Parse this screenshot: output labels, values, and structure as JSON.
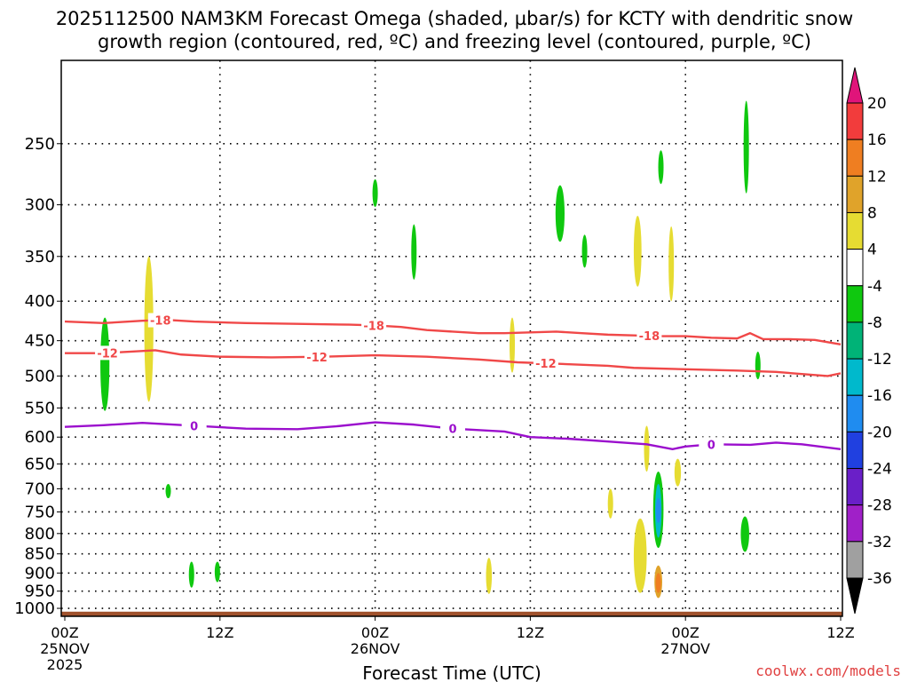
{
  "title": {
    "line1": "2025112500 NAM3KM Forecast Omega (shaded, µbar/s) for KCTY with dendritic snow",
    "line2": "growth region (contoured, red, ºC) and freezing level (contoured, purple, ºC)"
  },
  "watermark": "coolwx.com/models",
  "chart_data": {
    "type": "heatmap",
    "xlabel": "Forecast Time (UTC)",
    "x_ticks": [
      {
        "h": 0,
        "lines": [
          "00Z",
          "25NOV",
          "2025"
        ]
      },
      {
        "h": 12,
        "lines": [
          "12Z"
        ]
      },
      {
        "h": 24,
        "lines": [
          "00Z",
          "26NOV"
        ]
      },
      {
        "h": 36,
        "lines": [
          "12Z"
        ]
      },
      {
        "h": 48,
        "lines": [
          "00Z",
          "27NOV"
        ]
      },
      {
        "h": 60,
        "lines": [
          "12Z"
        ]
      }
    ],
    "xlim_hours": [
      0,
      60
    ],
    "ylabel": "",
    "y_ticks": [
      250,
      300,
      350,
      400,
      450,
      500,
      550,
      600,
      650,
      700,
      750,
      800,
      850,
      900,
      950,
      1000
    ],
    "ylim_hpa": [
      1024,
      195
    ],
    "y_scale": "log",
    "grid": "dotted",
    "colorbar": {
      "labels": [
        "20",
        "16",
        "12",
        "8",
        "4",
        "-4",
        "-8",
        "-12",
        "-16",
        "-20",
        "-24",
        "-28",
        "-32",
        "-36"
      ],
      "bins": [
        {
          "lo": 16,
          "hi": 20,
          "color": "#f23c3c"
        },
        {
          "lo": 12,
          "hi": 16,
          "color": "#ef7e21"
        },
        {
          "lo": 8,
          "hi": 12,
          "color": "#e0a32a"
        },
        {
          "lo": 4,
          "hi": 8,
          "color": "#e6dc32"
        },
        {
          "lo": -4,
          "hi": 4,
          "color": "#ffffff"
        },
        {
          "lo": -8,
          "hi": -4,
          "color": "#0fc80f"
        },
        {
          "lo": -12,
          "hi": -8,
          "color": "#00b377"
        },
        {
          "lo": -16,
          "hi": -12,
          "color": "#00b9cc"
        },
        {
          "lo": -20,
          "hi": -16,
          "color": "#1f8cf0"
        },
        {
          "lo": -24,
          "hi": -20,
          "color": "#2040e0"
        },
        {
          "lo": -28,
          "hi": -24,
          "color": "#6a1fc8"
        },
        {
          "lo": -32,
          "hi": -28,
          "color": "#a020c8"
        },
        {
          "lo": -36,
          "hi": -32,
          "color": "#a0a0a0"
        }
      ],
      "top_arrow_color": "#e0147a",
      "bottom_arrow_color": "#000000"
    },
    "terrain": {
      "color": "#a0522d",
      "top_hpa": 1010
    },
    "omega_features": [
      {
        "h": 3.1,
        "p": 488,
        "dh": 0.7,
        "dp_lo": 420,
        "dp_hi": 555,
        "color": "#0fc80f"
      },
      {
        "h": 6.5,
        "p": 440,
        "dh": 0.7,
        "dp_lo": 350,
        "dp_hi": 540,
        "color": "#e6dc32"
      },
      {
        "h": 8.0,
        "p": 705,
        "dh": 0.35,
        "dp_lo": 690,
        "dp_hi": 720,
        "color": "#0fc80f"
      },
      {
        "h": 9.8,
        "p": 905,
        "dh": 0.4,
        "dp_lo": 870,
        "dp_hi": 940,
        "color": "#0fc80f"
      },
      {
        "h": 11.8,
        "p": 895,
        "dh": 0.2,
        "dp_lo": 870,
        "dp_hi": 925,
        "color": "#0fc80f"
      },
      {
        "h": 24.0,
        "p": 290,
        "dh": 0.3,
        "dp_lo": 278,
        "dp_hi": 302,
        "color": "#0fc80f"
      },
      {
        "h": 27.0,
        "p": 345,
        "dh": 0.4,
        "dp_lo": 318,
        "dp_hi": 375,
        "color": "#0fc80f"
      },
      {
        "h": 32.8,
        "p": 905,
        "dh": 0.45,
        "dp_lo": 860,
        "dp_hi": 958,
        "color": "#e6dc32"
      },
      {
        "h": 34.6,
        "p": 455,
        "dh": 0.4,
        "dp_lo": 420,
        "dp_hi": 495,
        "color": "#e6dc32"
      },
      {
        "h": 38.3,
        "p": 313,
        "dh": 0.7,
        "dp_lo": 283,
        "dp_hi": 335,
        "color": "#0fc80f"
      },
      {
        "h": 40.2,
        "p": 345,
        "dh": 0.3,
        "dp_lo": 328,
        "dp_hi": 362,
        "color": "#0fc80f"
      },
      {
        "h": 42.2,
        "p": 730,
        "dh": 0.3,
        "dp_lo": 700,
        "dp_hi": 765,
        "color": "#e6dc32"
      },
      {
        "h": 44.3,
        "p": 345,
        "dh": 0.6,
        "dp_lo": 310,
        "dp_hi": 383,
        "color": "#e6dc32"
      },
      {
        "h": 45.0,
        "p": 620,
        "dh": 0.35,
        "dp_lo": 580,
        "dp_hi": 665,
        "color": "#e6dc32"
      },
      {
        "h": 44.5,
        "p": 860,
        "dh": 1.0,
        "dp_lo": 765,
        "dp_hi": 955,
        "color": "#e6dc32"
      },
      {
        "h": 45.9,
        "p": 920,
        "dh": 0.6,
        "dp_lo": 880,
        "dp_hi": 970,
        "color": "#e0a32a"
      },
      {
        "h": 45.9,
        "p": 925,
        "dh": 0.3,
        "dp_lo": 900,
        "dp_hi": 955,
        "color": "#ef7e21"
      },
      {
        "h": 45.9,
        "p": 745,
        "dh": 0.8,
        "dp_lo": 665,
        "dp_hi": 835,
        "color": "#0fc80f"
      },
      {
        "h": 45.9,
        "p": 745,
        "dh": 0.5,
        "dp_lo": 690,
        "dp_hi": 810,
        "color": "#00b9cc"
      },
      {
        "h": 45.9,
        "p": 745,
        "dh": 0.25,
        "dp_lo": 720,
        "dp_hi": 775,
        "color": "#1f8cf0"
      },
      {
        "h": 46.1,
        "p": 268,
        "dh": 0.2,
        "dp_lo": 255,
        "dp_hi": 282,
        "color": "#0fc80f"
      },
      {
        "h": 46.9,
        "p": 350,
        "dh": 0.25,
        "dp_lo": 320,
        "dp_hi": 400,
        "color": "#e6dc32"
      },
      {
        "h": 47.4,
        "p": 665,
        "dh": 0.5,
        "dp_lo": 640,
        "dp_hi": 695,
        "color": "#e6dc32"
      },
      {
        "h": 52.7,
        "p": 252,
        "dh": 0.4,
        "dp_lo": 220,
        "dp_hi": 290,
        "color": "#0fc80f"
      },
      {
        "h": 52.6,
        "p": 800,
        "dh": 0.65,
        "dp_lo": 760,
        "dp_hi": 845,
        "color": "#0fc80f"
      },
      {
        "h": 53.6,
        "p": 483,
        "dh": 0.2,
        "dp_lo": 465,
        "dp_hi": 505,
        "color": "#0fc80f"
      }
    ],
    "contours": [
      {
        "name": "-18",
        "label": "-18",
        "color": "#f04848",
        "points": [
          [
            0,
            425
          ],
          [
            3,
            427
          ],
          [
            6,
            424
          ],
          [
            8,
            423
          ],
          [
            10,
            425
          ],
          [
            14,
            427
          ],
          [
            18,
            428
          ],
          [
            22,
            429
          ],
          [
            24,
            430
          ],
          [
            26,
            432
          ],
          [
            28,
            436
          ],
          [
            30,
            438
          ],
          [
            32,
            440
          ],
          [
            34,
            440
          ],
          [
            36,
            439
          ],
          [
            38,
            438
          ],
          [
            40,
            440
          ],
          [
            42,
            442
          ],
          [
            44,
            443
          ],
          [
            46,
            444
          ],
          [
            48,
            444
          ],
          [
            50,
            446
          ],
          [
            52,
            447
          ],
          [
            53,
            440
          ],
          [
            54,
            448
          ],
          [
            56,
            448
          ],
          [
            58,
            449
          ],
          [
            60,
            455
          ]
        ],
        "label_at": [
          7.4,
          23.9,
          45.2
        ]
      },
      {
        "name": "-12",
        "label": "-12",
        "color": "#f04848",
        "points": [
          [
            0,
            467
          ],
          [
            3,
            467
          ],
          [
            5,
            465
          ],
          [
            7,
            463
          ],
          [
            9,
            469
          ],
          [
            12,
            472
          ],
          [
            16,
            473
          ],
          [
            20,
            472
          ],
          [
            24,
            470
          ],
          [
            28,
            472
          ],
          [
            32,
            476
          ],
          [
            35,
            480
          ],
          [
            38,
            482
          ],
          [
            42,
            485
          ],
          [
            44,
            488
          ],
          [
            48,
            490
          ],
          [
            52,
            492
          ],
          [
            55,
            494
          ],
          [
            59,
            500
          ],
          [
            60,
            496
          ]
        ],
        "label_at": [
          3.3,
          19.5,
          37.2
        ]
      },
      {
        "name": "0",
        "label": "0",
        "color": "#9b0fcd",
        "points": [
          [
            0,
            582
          ],
          [
            3,
            579
          ],
          [
            6,
            575
          ],
          [
            10,
            580
          ],
          [
            14,
            585
          ],
          [
            18,
            586
          ],
          [
            21,
            581
          ],
          [
            24,
            574
          ],
          [
            27,
            578
          ],
          [
            30,
            585
          ],
          [
            34,
            590
          ],
          [
            36,
            600
          ],
          [
            39,
            603
          ],
          [
            42,
            608
          ],
          [
            45,
            613
          ],
          [
            47,
            622
          ],
          [
            48,
            617
          ],
          [
            50,
            613
          ],
          [
            53,
            614
          ],
          [
            55,
            610
          ],
          [
            57,
            613
          ],
          [
            60,
            622
          ]
        ],
        "label_at": [
          10,
          30,
          50
        ]
      }
    ]
  }
}
